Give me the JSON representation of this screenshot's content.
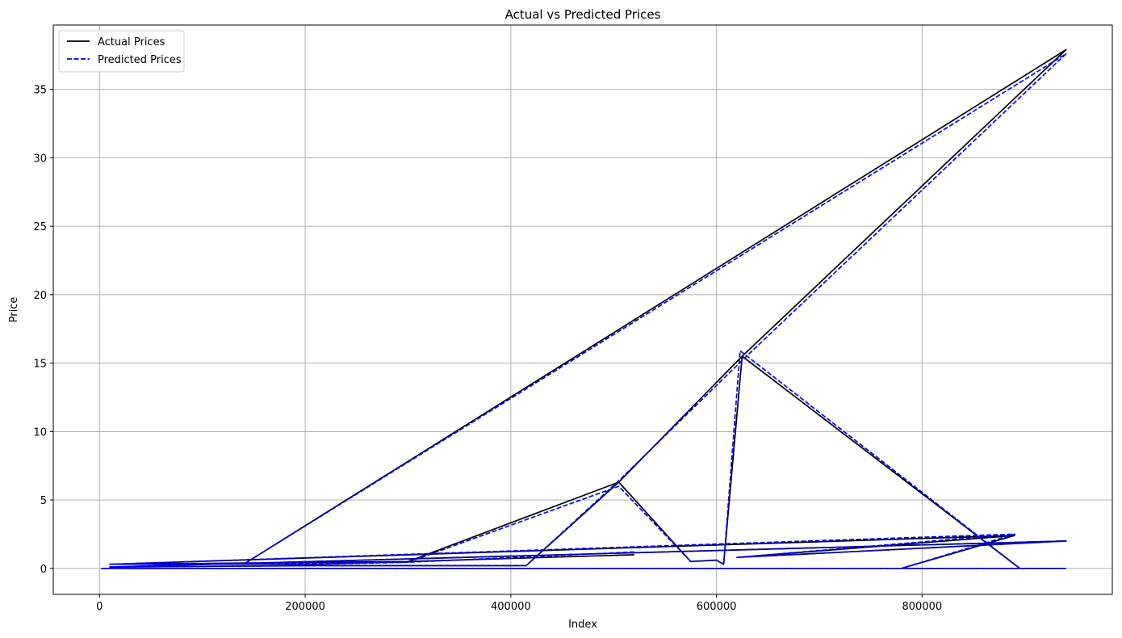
{
  "chart_data": {
    "type": "line",
    "title": "Actual vs Predicted Prices",
    "xlabel": "Index",
    "ylabel": "Price",
    "xlim": [
      -45000,
      985000
    ],
    "ylim": [
      -1.9,
      39.7
    ],
    "xticks": [
      0,
      200000,
      400000,
      600000,
      800000
    ],
    "yticks": [
      0,
      5,
      10,
      15,
      20,
      25,
      30,
      35
    ],
    "grid": true,
    "legend_position": "top-left",
    "series": [
      {
        "name": "Actual Prices",
        "color": "#000000",
        "linestyle": "solid",
        "x": [
          520000,
          300000,
          210000,
          10000,
          140000,
          940000,
          625000,
          505000,
          415000,
          210000,
          10000,
          940000,
          620000,
          890000,
          780000,
          890000,
          10000,
          300000,
          505000,
          575000,
          600000,
          607000,
          625000,
          895000,
          2000,
          940000
        ],
        "y": [
          1.0,
          0.5,
          0.3,
          0.3,
          0.3,
          37.9,
          15.5,
          6.3,
          0.2,
          0.2,
          0.1,
          2.0,
          0.8,
          2.4,
          0.0,
          2.4,
          0.3,
          0.5,
          6.3,
          0.5,
          0.6,
          0.3,
          15.5,
          0.0,
          0.0,
          0.0
        ]
      },
      {
        "name": "Predicted Prices",
        "color": "#0000ff",
        "linestyle": "dashed",
        "x": [
          520000,
          300000,
          210000,
          10000,
          140000,
          940000,
          625000,
          505000,
          415000,
          210000,
          10000,
          940000,
          620000,
          890000,
          780000,
          890000,
          10000,
          300000,
          505000,
          575000,
          600000,
          607000,
          623000,
          895000,
          2000,
          940000
        ],
        "y": [
          1.2,
          0.45,
          0.3,
          0.3,
          0.3,
          37.6,
          15.2,
          6.4,
          0.2,
          0.2,
          0.1,
          2.0,
          0.8,
          2.5,
          0.0,
          2.5,
          0.3,
          0.45,
          6.0,
          0.5,
          0.6,
          0.3,
          15.9,
          0.0,
          0.0,
          0.0
        ]
      }
    ]
  }
}
